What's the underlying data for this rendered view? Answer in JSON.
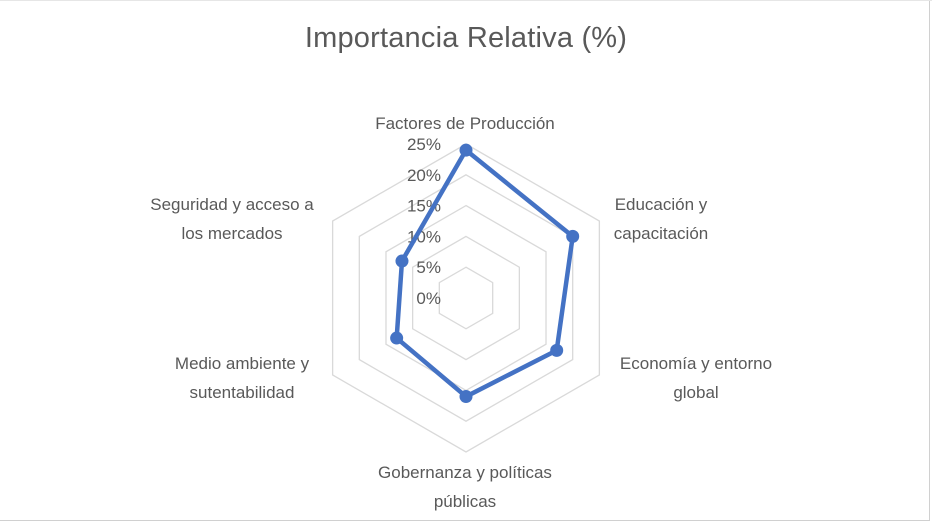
{
  "chart_data": {
    "type": "radar",
    "title": "Importancia Relativa (%)",
    "categories": [
      [
        "Factores de Producción"
      ],
      [
        "Educación y",
        "capacitación"
      ],
      [
        "Economía y entorno",
        "global"
      ],
      [
        "Gobernanza y políticas",
        "públicas"
      ],
      [
        "Medio ambiente y",
        "sutentabilidad"
      ],
      [
        "Seguridad y acceso a",
        "los mercados"
      ]
    ],
    "series": [
      {
        "values": [
          0.24,
          0.2,
          0.17,
          0.16,
          0.13,
          0.12
        ]
      }
    ],
    "ylim": [
      0,
      0.25
    ],
    "ticks": [
      "0%",
      "5%",
      "10%",
      "15%",
      "20%",
      "25%"
    ],
    "grid": true,
    "legend": "none",
    "colors": {
      "series": "#4472C4",
      "grid": "#d9d9d9",
      "text": "#595959"
    }
  }
}
